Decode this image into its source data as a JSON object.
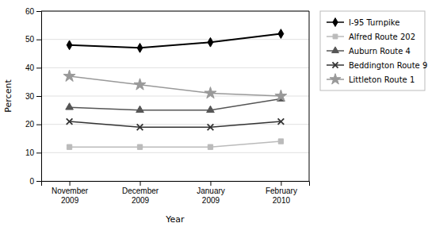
{
  "chart_data": {
    "type": "line",
    "x_label": "Year",
    "y_label": "Percent",
    "categories": [
      "November\n2009",
      "December\n2009",
      "January\n2009",
      "February\n2010"
    ],
    "series": [
      {
        "name": "I-95 Turnpike",
        "color": "#000000",
        "marker": "diamond",
        "values": [
          48,
          47,
          49,
          52
        ]
      },
      {
        "name": "Alfred Route 202",
        "color": "#bbbbbb",
        "marker": "square",
        "values": [
          12,
          12,
          12,
          14
        ]
      },
      {
        "name": "Auburn Route 4",
        "color": "#555555",
        "marker": "triangle",
        "values": [
          26,
          25,
          25,
          29
        ]
      },
      {
        "name": "Beddington Route 9",
        "color": "#333333",
        "marker": "x",
        "values": [
          21,
          19,
          19,
          21
        ]
      },
      {
        "name": "Littleton Route 1",
        "color": "#999999",
        "marker": "star",
        "values": [
          37,
          34,
          31,
          30
        ]
      }
    ],
    "ylim": [
      0,
      60
    ],
    "yticks": [
      0,
      10,
      20,
      30,
      40,
      50,
      60
    ],
    "grid": true,
    "legend": "right"
  }
}
